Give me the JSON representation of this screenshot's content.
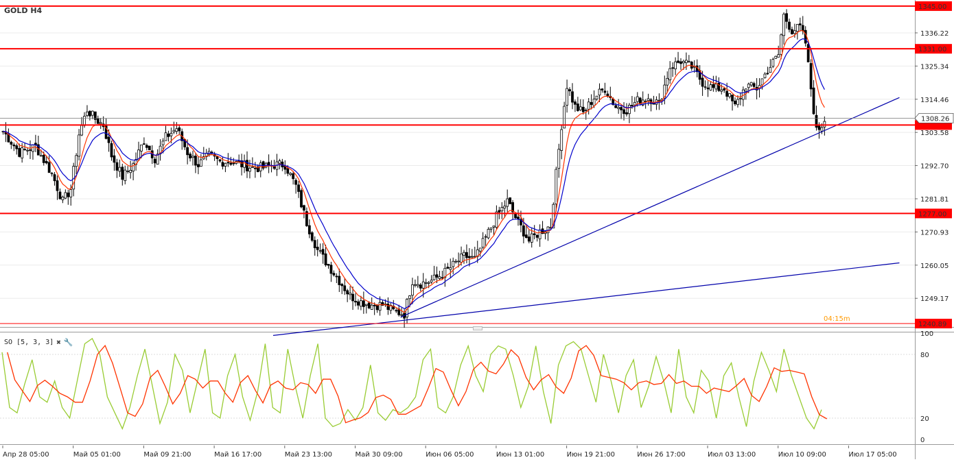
{
  "header": {
    "symbol": "GOLD H4",
    "countdown": "04:15m"
  },
  "oscillator": {
    "label": "SO [5, 3, 3]",
    "close_icon": "close-icon",
    "settings_icon": "wrench-icon",
    "k_color": "#99cc33",
    "d_color": "#ff3300",
    "ticks": [
      "100",
      "80",
      "20",
      "0"
    ],
    "levels": [
      80,
      20
    ],
    "ylim": [
      0,
      100
    ]
  },
  "colors": {
    "level_line": "#ff0000",
    "ema_fast": "#ff3300",
    "ema_slow": "#0000cc",
    "trendline": "#0000aa",
    "price_tag_bg": "#ff0000",
    "current_price_tag_bg": "#ffffff",
    "candle": "#000000"
  },
  "chart_data": {
    "type": "candlestick",
    "title": "GOLD H4",
    "ylim": [
      1240.0,
      1347.0
    ],
    "y_ticks": [
      "1336.22",
      "1325.34",
      "1314.46",
      "1303.58",
      "1292.70",
      "1281.81",
      "1270.93",
      "1260.05",
      "1249.17"
    ],
    "x_tick_labels": [
      "Апр 28 05:00",
      "Май 05 01:00",
      "Май 09 21:00",
      "Май 16 17:00",
      "Май 23 13:00",
      "Май 30 09:00",
      "Июн 06 05:00",
      "Июн 13 01:00",
      "Июн 19 21:00",
      "Июн 26 17:00",
      "Июл 03 13:00",
      "Июл 10 09:00",
      "Июл 17 05:00"
    ],
    "horizontal_levels": [
      {
        "price": 1345.0,
        "label": "1345.00"
      },
      {
        "price": 1331.0,
        "label": "1331.00"
      },
      {
        "price": 1306.0,
        "label": ""
      },
      {
        "price": 1277.0,
        "label": "1277.00"
      },
      {
        "price": 1240.89,
        "label": "1240.89"
      }
    ],
    "current_price": {
      "price": 1308.26,
      "label": "1308.26"
    },
    "price_path": [
      [
        0,
        1304
      ],
      [
        6,
        1297
      ],
      [
        12,
        1299
      ],
      [
        18,
        1290
      ],
      [
        22,
        1281
      ],
      [
        25,
        1285
      ],
      [
        28,
        1303
      ],
      [
        31,
        1311
      ],
      [
        34,
        1308
      ],
      [
        37,
        1306
      ],
      [
        40,
        1296
      ],
      [
        44,
        1289
      ],
      [
        48,
        1293
      ],
      [
        52,
        1301
      ],
      [
        56,
        1295
      ],
      [
        60,
        1302
      ],
      [
        64,
        1305
      ],
      [
        68,
        1297
      ],
      [
        72,
        1293
      ],
      [
        76,
        1296
      ],
      [
        80,
        1294
      ],
      [
        84,
        1294
      ],
      [
        88,
        1293
      ],
      [
        92,
        1292
      ],
      [
        96,
        1292
      ],
      [
        100,
        1293
      ],
      [
        104,
        1293
      ],
      [
        108,
        1286
      ],
      [
        112,
        1274
      ],
      [
        116,
        1265
      ],
      [
        120,
        1260
      ],
      [
        124,
        1255
      ],
      [
        128,
        1250
      ],
      [
        132,
        1248
      ],
      [
        136,
        1247
      ],
      [
        140,
        1247
      ],
      [
        144,
        1245
      ],
      [
        148,
        1244
      ],
      [
        151,
        1255
      ],
      [
        154,
        1254
      ],
      [
        158,
        1255
      ],
      [
        162,
        1257
      ],
      [
        166,
        1260
      ],
      [
        170,
        1263
      ],
      [
        174,
        1262
      ],
      [
        178,
        1269
      ],
      [
        182,
        1276
      ],
      [
        186,
        1281
      ],
      [
        190,
        1274
      ],
      [
        194,
        1268
      ],
      [
        198,
        1271
      ],
      [
        202,
        1273
      ],
      [
        204,
        1290
      ],
      [
        206,
        1306
      ],
      [
        208,
        1319
      ],
      [
        211,
        1312
      ],
      [
        214,
        1310
      ],
      [
        218,
        1315
      ],
      [
        222,
        1318
      ],
      [
        226,
        1312
      ],
      [
        230,
        1311
      ],
      [
        234,
        1314
      ],
      [
        238,
        1315
      ],
      [
        242,
        1313
      ],
      [
        246,
        1325
      ],
      [
        250,
        1327
      ],
      [
        254,
        1325
      ],
      [
        258,
        1320
      ],
      [
        262,
        1318
      ],
      [
        266,
        1318
      ],
      [
        270,
        1312
      ],
      [
        274,
        1319
      ],
      [
        278,
        1318
      ],
      [
        282,
        1324
      ],
      [
        286,
        1329
      ],
      [
        288,
        1342
      ],
      [
        291,
        1337
      ],
      [
        294,
        1338
      ],
      [
        296,
        1333
      ],
      [
        298,
        1318
      ],
      [
        300,
        1304
      ],
      [
        302,
        1306
      ],
      [
        303,
        1308
      ]
    ],
    "trendlines": [
      {
        "from": [
          100,
          1237.0
        ],
        "to": [
          331,
          1260.8
        ]
      },
      {
        "from": [
          147,
          1243.0
        ],
        "to": [
          331,
          1315.0
        ]
      }
    ],
    "stochastic_k": [
      82,
      30,
      25,
      52,
      75,
      40,
      35,
      55,
      30,
      20,
      55,
      90,
      95,
      80,
      40,
      25,
      10,
      30,
      60,
      85,
      50,
      15,
      35,
      80,
      65,
      25,
      55,
      85,
      25,
      20,
      60,
      80,
      40,
      18,
      45,
      90,
      30,
      25,
      85,
      50,
      20,
      60,
      90,
      20,
      12,
      15,
      28,
      18,
      30,
      70,
      25,
      18,
      28,
      25,
      30,
      40,
      75,
      85,
      30,
      25,
      40,
      70,
      88,
      60,
      45,
      80,
      88,
      85,
      60,
      30,
      50,
      88,
      45,
      15,
      70,
      88,
      92,
      85,
      60,
      35,
      80,
      55,
      25,
      60,
      75,
      30,
      50,
      78,
      55,
      25,
      85,
      40,
      25,
      65,
      55,
      20,
      60,
      72,
      40,
      12,
      55,
      82,
      65,
      45,
      85,
      60,
      40,
      20,
      10,
      28
    ]
  }
}
